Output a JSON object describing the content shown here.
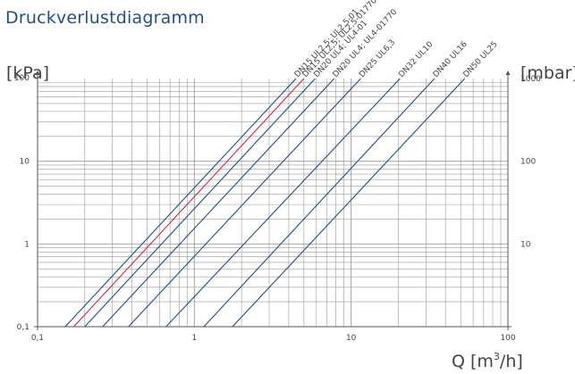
{
  "page": {
    "title": "Druckverlustdiagramm",
    "unit_left": "[kPa]",
    "unit_right": "[mbar]",
    "unit_x_prefix": "Q [m",
    "unit_x_exp": "3",
    "unit_x_suffix": "/h]"
  },
  "chart_data": {
    "type": "line",
    "title": "Druckverlustdiagramm",
    "xlabel": "Q [m3/h]",
    "ylabel": "[kPa]",
    "y2label": "[mbar]",
    "xscale": "log",
    "yscale": "log",
    "xlim": [
      0.1,
      100
    ],
    "ylim": [
      0.1,
      100
    ],
    "y2lim": [
      1,
      1000
    ],
    "grid": true,
    "x_ticks": [
      "0,1",
      "1",
      "10",
      "100"
    ],
    "y_ticks": [
      "0,1",
      "1",
      "10",
      "100"
    ],
    "y2_ticks": [
      "10",
      "100",
      "1000"
    ],
    "colors": {
      "line": "#1f4e8c",
      "highlight": "#d6244a",
      "grid": "#9a9a9a",
      "axis": "#555555"
    },
    "series": [
      {
        "name": "DN15 UL2,5; UL2,5-01",
        "color": "#1f4e8c",
        "x": [
          0.15,
          4.45
        ],
        "y": [
          0.1,
          100
        ]
      },
      {
        "name": "DN15 UL2,5; UL2,5-01770",
        "color": "#d6244a",
        "x": [
          0.17,
          5.0
        ],
        "y": [
          0.1,
          100
        ]
      },
      {
        "name": "DN20 UL4; UL4-01",
        "color": "#1f4e8c",
        "x": [
          0.2,
          5.9
        ],
        "y": [
          0.1,
          100
        ]
      },
      {
        "name": "DN20 UL4; UL4-01770",
        "color": "#1f4e8c",
        "x": [
          0.26,
          7.8
        ],
        "y": [
          0.1,
          100
        ]
      },
      {
        "name": "DN25 UL6,3",
        "color": "#1f4e8c",
        "x": [
          0.38,
          11.5
        ],
        "y": [
          0.1,
          100
        ]
      },
      {
        "name": "DN32 UL10",
        "color": "#1f4e8c",
        "x": [
          0.66,
          20.5
        ],
        "y": [
          0.1,
          100
        ]
      },
      {
        "name": "DN40 UL16",
        "color": "#1f4e8c",
        "x": [
          1.15,
          34.0
        ],
        "y": [
          0.1,
          100
        ]
      },
      {
        "name": "DN50 UL25",
        "color": "#1f4e8c",
        "x": [
          1.75,
          53.0
        ],
        "y": [
          0.1,
          100
        ]
      }
    ]
  }
}
